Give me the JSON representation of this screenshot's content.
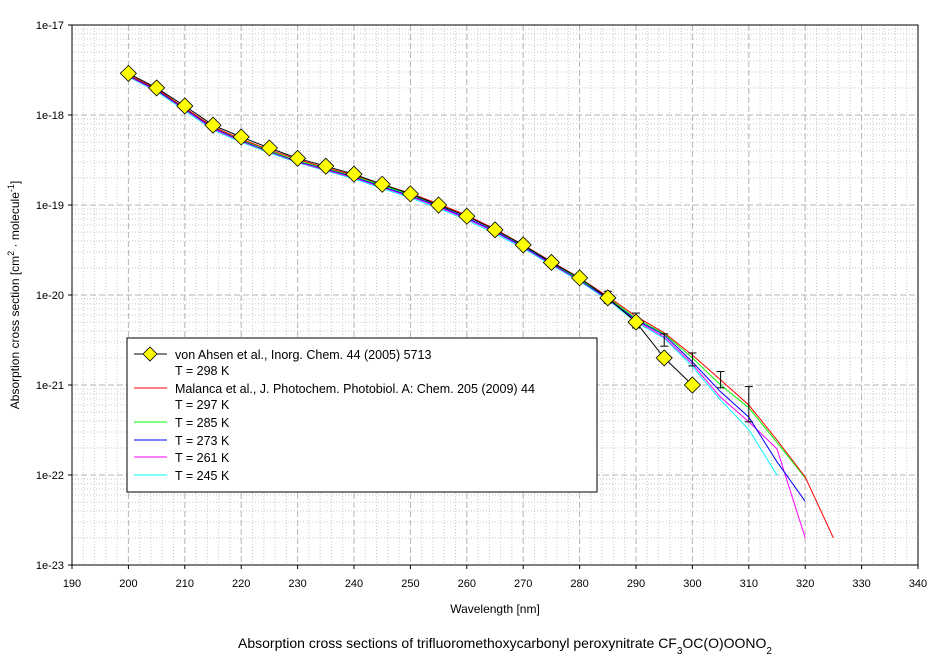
{
  "chart_data": {
    "type": "line",
    "title_parts": [
      {
        "text": "Absorption cross sections of trifluoromethoxycarbonyl peroxynitrate CF",
        "style": "normal"
      },
      {
        "text": "3",
        "style": "sub"
      },
      {
        "text": "OC(O)OONO",
        "style": "normal"
      },
      {
        "text": "2",
        "style": "sub"
      }
    ],
    "xlabel": "Wavelength [nm]",
    "ylabel_parts": [
      {
        "text": "Absorption cross section [cm",
        "style": "normal"
      },
      {
        "text": "2",
        "style": "sup"
      },
      {
        "text": " · molecule",
        "style": "normal"
      },
      {
        "text": "-1",
        "style": "sup"
      },
      {
        "text": "]",
        "style": "normal"
      }
    ],
    "xlim": [
      190,
      340
    ],
    "ylim": [
      1e-23,
      1e-17
    ],
    "yscale": "log",
    "xticks": [
      "190",
      "200",
      "210",
      "220",
      "230",
      "240",
      "250",
      "260",
      "270",
      "280",
      "290",
      "300",
      "310",
      "320",
      "330",
      "340"
    ],
    "yticks": [
      "1e-17",
      "1e-18",
      "1e-19",
      "1e-20",
      "1e-21",
      "1e-22",
      "1e-23"
    ],
    "grid": true,
    "legend_placement": "lower-left",
    "series": [
      {
        "name": "von Ahsen et al., Inorg. Chem. 44 (2005) 5713",
        "name_line2": "T = 298 K",
        "color": "#000000",
        "marker": "diamond",
        "marker_color": "#ffff00",
        "x": [
          200,
          205,
          210,
          215,
          220,
          225,
          230,
          235,
          240,
          245,
          250,
          255,
          260,
          265,
          270,
          275,
          280,
          285,
          290,
          295,
          300
        ],
        "y": [
          2.9e-18,
          2e-18,
          1.26e-18,
          7.7e-19,
          5.7e-19,
          4.3e-19,
          3.3e-19,
          2.7e-19,
          2.2e-19,
          1.7e-19,
          1.33e-19,
          1e-19,
          7.5e-20,
          5.3e-20,
          3.6e-20,
          2.3e-20,
          1.55e-20,
          9.3e-21,
          5e-21,
          2e-21,
          1e-21
        ]
      },
      {
        "name": "Malanca et al., J. Photochem. Photobiol. A: Chem. 205 (2009) 44",
        "name_line2": "T = 297 K",
        "color": "#ff0000",
        "x": [
          200,
          205,
          210,
          215,
          220,
          225,
          230,
          235,
          240,
          245,
          250,
          255,
          260,
          265,
          270,
          275,
          280,
          285,
          290,
          295,
          300,
          305,
          310,
          315,
          320,
          325
        ],
        "y": [
          2.8e-18,
          1.95e-18,
          1.2e-18,
          7.4e-19,
          5.4e-19,
          4.1e-19,
          3.2e-19,
          2.6e-19,
          2.15e-19,
          1.7e-19,
          1.35e-19,
          1.03e-19,
          7.7e-20,
          5.4e-20,
          3.6e-20,
          2.35e-20,
          1.55e-20,
          9.6e-21,
          5.8e-21,
          3.8e-21,
          2.15e-21,
          1.14e-21,
          6e-22,
          2.45e-22,
          9.5e-23,
          2e-23
        ],
        "error_bars": [
          {
            "x": 285,
            "low": 8.1e-21,
            "high": 1.1e-20
          },
          {
            "x": 290,
            "low": 4.3e-21,
            "high": 6.3e-21
          },
          {
            "x": 295,
            "low": 2.7e-21,
            "high": 3.7e-21
          },
          {
            "x": 300,
            "low": 1.63e-21,
            "high": 2.27e-21
          },
          {
            "x": 305,
            "low": 9.3e-22,
            "high": 1.41e-21
          },
          {
            "x": 310,
            "low": 3.9e-22,
            "high": 9.6e-22
          }
        ]
      },
      {
        "name": "T = 285 K",
        "color": "#00ff00",
        "x": [
          200,
          205,
          210,
          215,
          220,
          225,
          230,
          235,
          240,
          245,
          250,
          255,
          260,
          265,
          270,
          275,
          280,
          285,
          290,
          295,
          300,
          305,
          310,
          315,
          320
        ],
        "y": [
          2.8e-18,
          1.95e-18,
          1.2e-18,
          7.4e-19,
          5.3e-19,
          4e-19,
          3.1e-19,
          2.55e-19,
          2.1e-19,
          1.65e-19,
          1.3e-19,
          1e-19,
          7.5e-20,
          5.3e-20,
          3.55e-20,
          2.3e-20,
          1.5e-20,
          9.4e-21,
          5.5e-21,
          3.7e-21,
          2e-21,
          1e-21,
          5.6e-22,
          2.3e-22,
          9.3e-23
        ]
      },
      {
        "name": "T = 273 K",
        "color": "#0000ff",
        "x": [
          200,
          205,
          210,
          215,
          220,
          225,
          230,
          235,
          240,
          245,
          250,
          255,
          260,
          265,
          270,
          275,
          280,
          285,
          290,
          295,
          300,
          305,
          310,
          315,
          320
        ],
        "y": [
          2.75e-18,
          1.9e-18,
          1.17e-18,
          7.2e-19,
          5.2e-19,
          3.95e-19,
          3.05e-19,
          2.5e-19,
          2.05e-19,
          1.6e-19,
          1.27e-19,
          9.7e-20,
          7.2e-20,
          5.1e-20,
          3.45e-20,
          2.25e-20,
          1.47e-20,
          9.1e-21,
          5.3e-21,
          3.6e-21,
          1.8e-21,
          8.4e-22,
          4.4e-22,
          1.4e-22,
          5.1e-23
        ]
      },
      {
        "name": "T = 261 K",
        "color": "#ff00ff",
        "x": [
          200,
          205,
          210,
          215,
          220,
          225,
          230,
          235,
          240,
          245,
          250,
          255,
          260,
          265,
          270,
          275,
          280,
          285,
          290,
          295,
          300,
          305,
          310,
          315,
          320
        ],
        "y": [
          2.7e-18,
          1.87e-18,
          1.15e-18,
          7e-19,
          5.1e-19,
          3.9e-19,
          3e-19,
          2.45e-19,
          2e-19,
          1.57e-19,
          1.24e-19,
          9.5e-20,
          7e-20,
          5e-20,
          3.4e-20,
          2.2e-20,
          1.45e-20,
          9e-21,
          5.2e-21,
          3.4e-21,
          1.7e-21,
          7.3e-22,
          3.9e-22,
          1.95e-22,
          2e-23
        ]
      },
      {
        "name": "T = 245 K",
        "color": "#00ffff",
        "x": [
          200,
          205,
          210,
          215,
          220,
          225,
          230,
          235,
          240,
          245,
          250,
          255,
          260,
          265,
          270,
          275,
          280,
          285,
          290,
          295,
          300,
          305,
          310,
          315
        ],
        "y": [
          2.65e-18,
          1.83e-18,
          1.12e-18,
          6.8e-19,
          5e-19,
          3.8e-19,
          2.95e-19,
          2.4e-19,
          1.95e-19,
          1.53e-19,
          1.2e-19,
          9.2e-20,
          6.8e-20,
          4.8e-20,
          3.3e-20,
          2.15e-20,
          1.42e-20,
          8.8e-21,
          5e-21,
          3.3e-21,
          1.6e-21,
          6.8e-22,
          3.2e-22,
          1e-22
        ]
      }
    ]
  }
}
